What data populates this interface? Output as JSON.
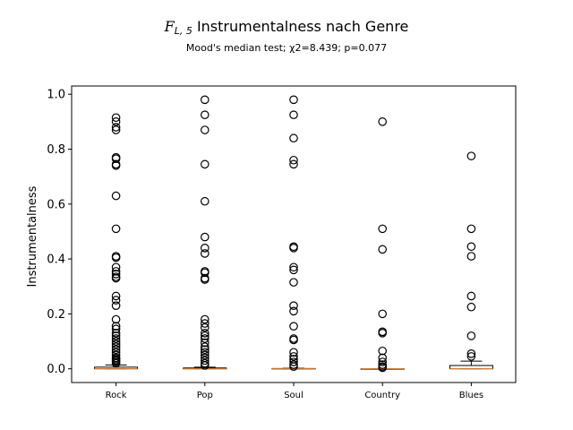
{
  "chart_data": {
    "type": "box",
    "title_symbol": "F",
    "title_subscript": "L, 5",
    "title_text": "Instrumentalness nach Genre",
    "subtitle": "Mood's median test; χ2=8.439; p=0.077",
    "ylabel": "Instrumentalness",
    "xlabel": "",
    "ylim": [
      -0.05,
      1.03
    ],
    "yticks": [
      0.0,
      0.2,
      0.4,
      0.6,
      0.8,
      1.0
    ],
    "ytick_labels": [
      "0.0",
      "0.2",
      "0.4",
      "0.6",
      "0.8",
      "1.0"
    ],
    "grid": false,
    "median_color": "#ff7f0e",
    "box_color": "#000000",
    "categories": [
      "Rock",
      "Pop",
      "Soul",
      "Country",
      "Blues"
    ],
    "boxes": [
      {
        "label": "Rock",
        "whisker_low": 0.0,
        "q1": 0.0,
        "median": 0.0,
        "q3": 0.006,
        "whisker_high": 0.014,
        "outliers": [
          0.915,
          0.9,
          0.88,
          0.87,
          0.77,
          0.765,
          0.745,
          0.74,
          0.63,
          0.51,
          0.41,
          0.405,
          0.37,
          0.355,
          0.345,
          0.335,
          0.33,
          0.265,
          0.25,
          0.23,
          0.18,
          0.155,
          0.145,
          0.13,
          0.12,
          0.11,
          0.1,
          0.09,
          0.08,
          0.07,
          0.06,
          0.05,
          0.04,
          0.035,
          0.03,
          0.025,
          0.02
        ]
      },
      {
        "label": "Pop",
        "whisker_low": 0.0,
        "q1": 0.0,
        "median": 0.0,
        "q3": 0.003,
        "whisker_high": 0.006,
        "outliers": [
          0.98,
          0.925,
          0.87,
          0.745,
          0.61,
          0.48,
          0.44,
          0.42,
          0.355,
          0.35,
          0.33,
          0.325,
          0.18,
          0.165,
          0.15,
          0.13,
          0.12,
          0.11,
          0.095,
          0.08,
          0.07,
          0.06,
          0.05,
          0.04,
          0.03,
          0.02,
          0.012
        ]
      },
      {
        "label": "Soul",
        "whisker_low": 0.0,
        "q1": 0.0,
        "median": 0.0,
        "q3": 0.001,
        "whisker_high": 0.002,
        "outliers": [
          0.98,
          0.925,
          0.84,
          0.76,
          0.745,
          0.445,
          0.44,
          0.37,
          0.36,
          0.315,
          0.23,
          0.21,
          0.155,
          0.11,
          0.105,
          0.06,
          0.045,
          0.035,
          0.025,
          0.015,
          0.008
        ]
      },
      {
        "label": "Country",
        "whisker_low": 0.0,
        "q1": 0.0,
        "median": 0.0,
        "q3": 0.0,
        "whisker_high": 0.0,
        "outliers": [
          0.9,
          0.51,
          0.435,
          0.2,
          0.135,
          0.13,
          0.065,
          0.04,
          0.025,
          0.015,
          0.008,
          0.004
        ]
      },
      {
        "label": "Blues",
        "whisker_low": 0.0,
        "q1": 0.0,
        "median": 0.0,
        "q3": 0.012,
        "whisker_high": 0.028,
        "outliers": [
          0.775,
          0.51,
          0.445,
          0.41,
          0.265,
          0.225,
          0.12,
          0.055,
          0.045
        ]
      }
    ]
  }
}
